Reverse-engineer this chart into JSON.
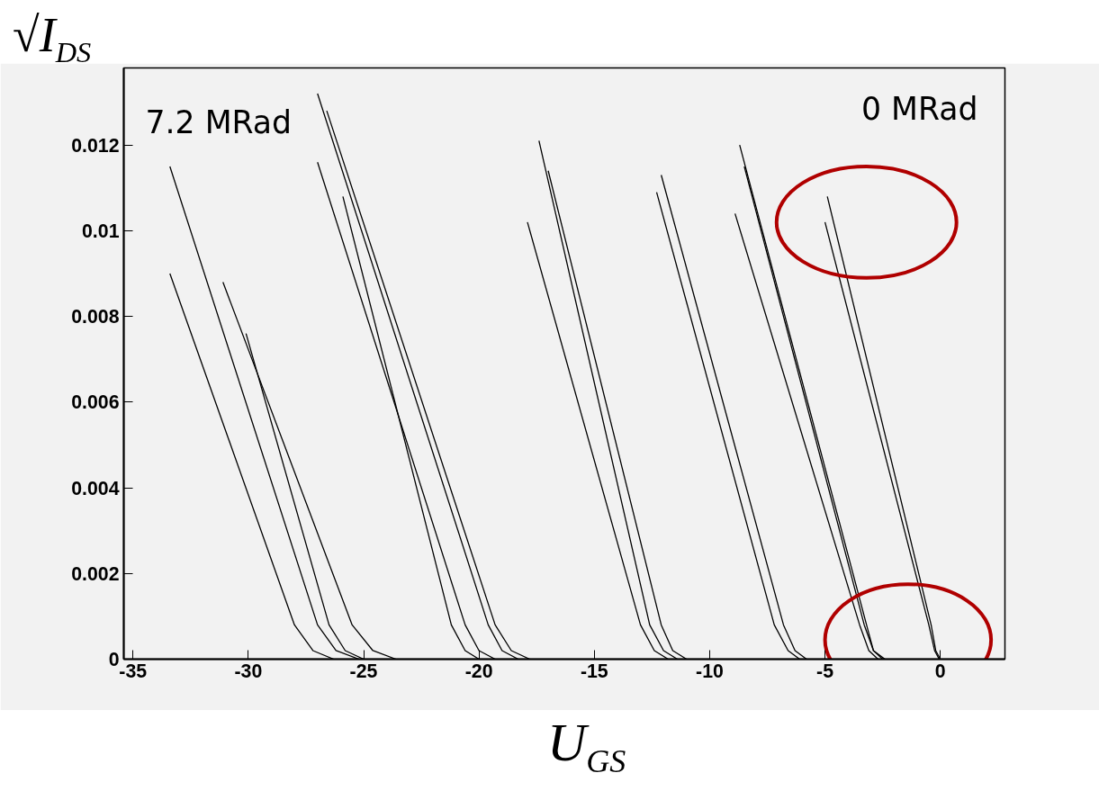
{
  "chart_data": {
    "type": "line",
    "xlabel": "U$_{GS}$",
    "ylabel": "√I$_{DS}$",
    "xlim": [
      -35.4,
      2.8
    ],
    "ylim": [
      0,
      0.0138
    ],
    "xticks": [
      -35,
      -30,
      -25,
      -20,
      -15,
      -10,
      -5,
      0
    ],
    "yticks": [
      0,
      0.002,
      0.004,
      0.006,
      0.008,
      0.01,
      0.012
    ],
    "grid": false,
    "marker": "none",
    "line_style": "solid",
    "annotations": [
      "7.2 MRad",
      "0 MRad"
    ],
    "series": [
      {
        "color": "#000000",
        "x": [
          -4.9,
          -0.4,
          -0.2,
          0
        ],
        "values": [
          0.0108,
          0.0008,
          0.0002,
          0
        ]
      },
      {
        "color": "#000000",
        "x": [
          -5.0,
          -0.5,
          -0.25,
          -0.05
        ],
        "values": [
          0.0102,
          0.0008,
          0.0002,
          0
        ]
      },
      {
        "color": "#000000",
        "x": [
          -8.7,
          -3.2,
          -2.9,
          -2.5
        ],
        "values": [
          0.012,
          0.0008,
          0.0002,
          0
        ]
      },
      {
        "color": "#000000",
        "x": [
          -8.9,
          -3.5,
          -3.1,
          -2.7
        ],
        "values": [
          0.0104,
          0.0008,
          0.0002,
          0
        ]
      },
      {
        "color": "#000000",
        "x": [
          -8.5,
          -3.3,
          -2.9,
          -2.4
        ],
        "values": [
          0.0115,
          0.0008,
          0.0002,
          0
        ]
      },
      {
        "color": "#000000",
        "x": [
          -12.1,
          -6.8,
          -6.3,
          -5.8
        ],
        "values": [
          0.0113,
          0.0008,
          0.0002,
          0
        ]
      },
      {
        "color": "#000000",
        "x": [
          -12.3,
          -7.2,
          -6.6,
          -6.1
        ],
        "values": [
          0.0109,
          0.0008,
          0.0002,
          0
        ]
      },
      {
        "color": "#000000",
        "x": [
          -17.4,
          -12.6,
          -12.0,
          -11.4
        ],
        "values": [
          0.0121,
          0.0008,
          0.0002,
          0
        ]
      },
      {
        "color": "#000000",
        "x": [
          -17.9,
          -13.0,
          -12.4,
          -11.8
        ],
        "values": [
          0.0102,
          0.0008,
          0.0002,
          0
        ]
      },
      {
        "color": "#000000",
        "x": [
          -17.0,
          -12.1,
          -11.6,
          -11.0
        ],
        "values": [
          0.0114,
          0.0008,
          0.0002,
          0
        ]
      },
      {
        "color": "#000000",
        "x": [
          -27.0,
          -19.6,
          -19.0,
          -18.3
        ],
        "values": [
          0.0132,
          0.0008,
          0.0002,
          0
        ]
      },
      {
        "color": "#000000",
        "x": [
          -27.0,
          -20.6,
          -20.0,
          -19.3
        ],
        "values": [
          0.0116,
          0.0008,
          0.0002,
          0
        ]
      },
      {
        "color": "#000000",
        "x": [
          -26.6,
          -19.3,
          -18.6,
          -17.8
        ],
        "values": [
          0.0128,
          0.0008,
          0.0002,
          0
        ]
      },
      {
        "color": "#000000",
        "x": [
          -25.9,
          -21.2,
          -20.6,
          -20.0
        ],
        "values": [
          0.0108,
          0.0008,
          0.0002,
          0
        ]
      },
      {
        "color": "#000000",
        "x": [
          -33.4,
          -27.0,
          -26.2,
          -25.2
        ],
        "values": [
          0.0115,
          0.0008,
          0.0002,
          0
        ]
      },
      {
        "color": "#000000",
        "x": [
          -33.4,
          -28.0,
          -27.2,
          -26.3
        ],
        "values": [
          0.009,
          0.0008,
          0.0002,
          0
        ]
      },
      {
        "color": "#000000",
        "x": [
          -31.1,
          -25.5,
          -24.6,
          -23.6
        ],
        "values": [
          0.0088,
          0.0008,
          0.0002,
          0
        ]
      },
      {
        "color": "#000000",
        "x": [
          -30.1,
          -26.5,
          -25.8,
          -25.0
        ],
        "values": [
          0.0076,
          0.0008,
          0.0002,
          0
        ]
      }
    ]
  }
}
